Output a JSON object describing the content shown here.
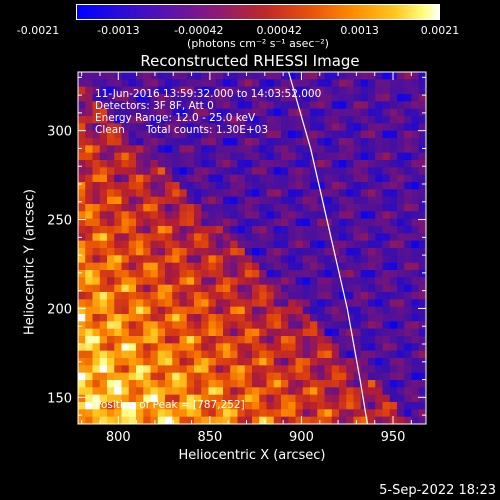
{
  "colorbar": {
    "ticks": [
      "-0.0021",
      "-0.0013",
      "-0.00042",
      "0.00042",
      "0.0013",
      "0.0021"
    ],
    "unit": "(photons cm⁻² s⁻¹ asec⁻²)",
    "colors": [
      "#0000ff",
      "#5a12b0",
      "#c02828",
      "#ff8a00",
      "#ffff80",
      "#ffffff"
    ]
  },
  "chart_data": {
    "type": "heatmap",
    "title": "Reconstructed RHESSI Image",
    "xlabel": "Heliocentric X (arcsec)",
    "ylabel": "Heliocentric Y (arcsec)",
    "xlim": [
      778,
      968
    ],
    "ylim": [
      135,
      333
    ],
    "xticks": [
      800,
      850,
      900,
      950
    ],
    "yticks": [
      150,
      200,
      250,
      300
    ],
    "annotations": [
      "11-Jun-2016 13:59:32.000 to 14:03:52.000",
      "Detectors: 3F 8F, Att 0",
      "Energy Range: 12.0 - 25.0 keV",
      "Clean",
      "Total counts: 1.30E+03"
    ],
    "peak_label": "Position of Peak = [787,252]",
    "peak": [
      787,
      252
    ],
    "limb_curve": [
      [
        893,
        333
      ],
      [
        905,
        290
      ],
      [
        915,
        245
      ],
      [
        925,
        200
      ],
      [
        932,
        160
      ],
      [
        936,
        135
      ]
    ]
  },
  "footer": "5-Sep-2022 18:23"
}
